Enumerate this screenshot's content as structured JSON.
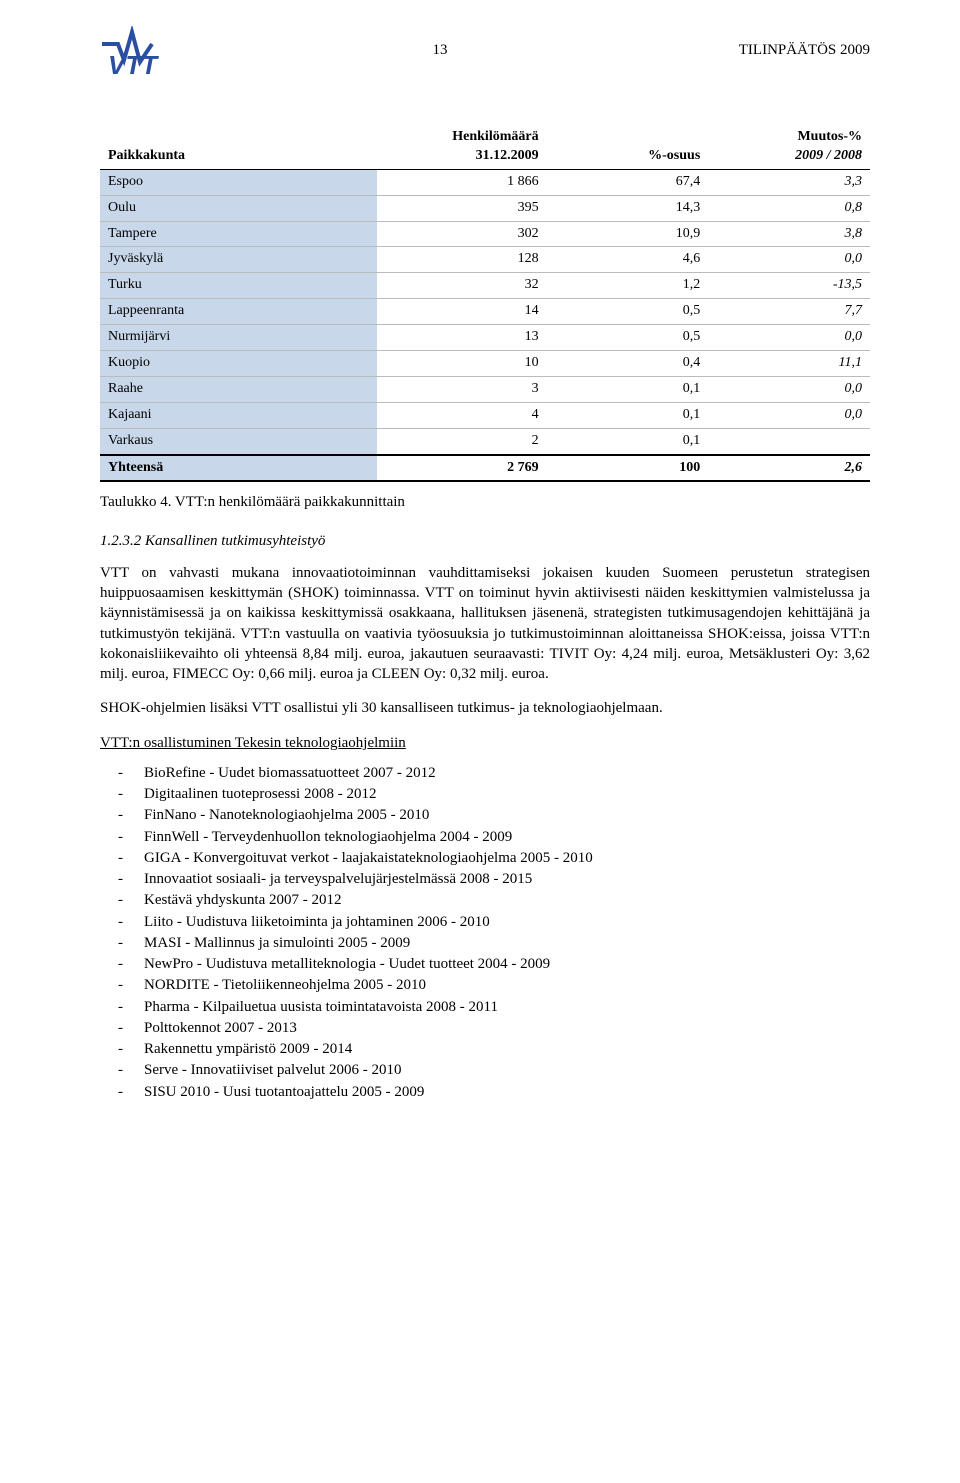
{
  "header": {
    "page_number": "13",
    "doc_title": "TILINPÄÄTÖS 2009",
    "logo_text": "VTT",
    "logo_color": "#2a4fa2"
  },
  "table": {
    "headers": {
      "c1_line1": "Paikkakunta",
      "c2_line1": "Henkilömäärä",
      "c2_line2": "31.12.2009",
      "c3_line1": "%-osuus",
      "c4_line1": "Muutos-%",
      "c4_line2": "2009 / 2008"
    },
    "rows": [
      {
        "name": "Espoo",
        "a": "1 866",
        "b": "67,4",
        "c": "3,3"
      },
      {
        "name": "Oulu",
        "a": "395",
        "b": "14,3",
        "c": "0,8"
      },
      {
        "name": "Tampere",
        "a": "302",
        "b": "10,9",
        "c": "3,8"
      },
      {
        "name": "Jyväskylä",
        "a": "128",
        "b": "4,6",
        "c": "0,0"
      },
      {
        "name": "Turku",
        "a": "32",
        "b": "1,2",
        "c": "-13,5"
      },
      {
        "name": "Lappeenranta",
        "a": "14",
        "b": "0,5",
        "c": "7,7"
      },
      {
        "name": "Nurmijärvi",
        "a": "13",
        "b": "0,5",
        "c": "0,0"
      },
      {
        "name": "Kuopio",
        "a": "10",
        "b": "0,4",
        "c": "11,1"
      },
      {
        "name": "Raahe",
        "a": "3",
        "b": "0,1",
        "c": "0,0"
      },
      {
        "name": "Kajaani",
        "a": "4",
        "b": "0,1",
        "c": "0,0"
      },
      {
        "name": "Varkaus",
        "a": "2",
        "b": "0,1",
        "c": ""
      }
    ],
    "total": {
      "name": "Yhteensä",
      "a": "2 769",
      "b": "100",
      "c": "2,6"
    },
    "caption": "Taulukko 4. VTT:n henkilömäärä paikkakunnittain",
    "shade_color": "#c8d7e9"
  },
  "section": {
    "heading": "1.2.3.2 Kansallinen tutkimusyhteistyö",
    "para1": "VTT on vahvasti mukana innovaatiotoiminnan vauhdittamiseksi jokaisen kuuden Suomeen perustetun strategisen huippuosaamisen keskittymän (SHOK) toiminnassa. VTT on toiminut hyvin aktiivisesti näiden keskittymien valmistelussa ja käynnistämisessä ja on kaikissa keskittymissä osakkaana, hallituksen jäsenenä, strategisten tutkimusagendojen kehittäjänä ja tutkimustyön tekijänä. VTT:n vastuulla on vaativia työosuuksia jo tutkimustoiminnan aloittaneissa SHOK:eissa, joissa VTT:n kokonaisliikevaihto oli yhteensä 8,84 milj. euroa, jakautuen seuraavasti: TIVIT Oy: 4,24 milj. euroa, Metsäklusteri Oy: 3,62 milj. euroa, FIMECC Oy: 0,66 milj. euroa ja CLEEN Oy: 0,32 milj. euroa.",
    "para2": "SHOK-ohjelmien lisäksi VTT osallistui yli 30 kansalliseen tutkimus- ja teknologiaohjelmaan.",
    "underline_heading": "VTT:n osallistuminen Tekesin teknologiaohjelmiin",
    "programs": [
      "BioRefine - Uudet biomassatuotteet 2007 - 2012",
      "Digitaalinen tuoteprosessi 2008 - 2012",
      "FinNano - Nanoteknologiaohjelma 2005 - 2010",
      "FinnWell - Terveydenhuollon teknologiaohjelma 2004 - 2009",
      "GIGA - Konvergoituvat verkot - laajakaistateknologiaohjelma 2005 - 2010",
      "Innovaatiot sosiaali- ja terveyspalvelujärjestelmässä 2008 - 2015",
      "Kestävä yhdyskunta 2007 - 2012",
      "Liito - Uudistuva liiketoiminta ja johtaminen 2006 - 2010",
      "MASI - Mallinnus ja simulointi 2005 - 2009",
      "NewPro - Uudistuva metalliteknologia - Uudet tuotteet 2004 - 2009",
      "NORDITE - Tietoliikenneohjelma 2005 - 2010",
      "Pharma - Kilpailuetua uusista toimintatavoista 2008 - 2011",
      "Polttokennot 2007 - 2013",
      "Rakennettu ympäristö 2009 - 2014",
      "Serve - Innovatiiviset palvelut 2006 - 2010",
      "SISU 2010 - Uusi tuotantoajattelu 2005 - 2009"
    ]
  }
}
